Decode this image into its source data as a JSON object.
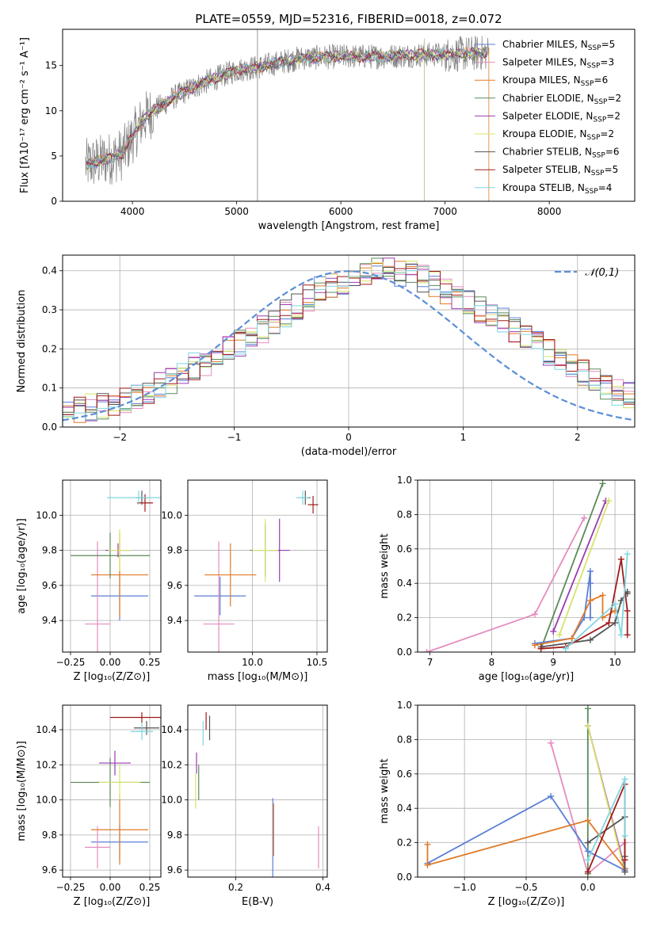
{
  "figure_title": "PLATE=0559, MJD=52316, FIBERID=0018, z=0.072",
  "chart_data": [
    {
      "id": "spectrum",
      "type": "line",
      "xlabel": "wavelength [Angstrom, rest frame]",
      "ylabel": "Flux [fλ10⁻¹⁷ erg cm⁻² s⁻¹ A⁻¹]",
      "xlim": [
        3330,
        8820
      ],
      "ylim": [
        0,
        19
      ],
      "xticks": [
        4000,
        5000,
        6000,
        7000,
        8000
      ],
      "yticks": [
        0,
        5,
        10,
        15
      ],
      "grid": false,
      "legend_position": "top-right",
      "series": [
        {
          "name": "Chabrier MILES, N_SSP=5",
          "label_main": "Chabrier MILES, N",
          "label_sub": "SSP",
          "label_tail": "=5",
          "color": "#5b7fd6"
        },
        {
          "name": "Salpeter MILES, N_SSP=3",
          "label_main": "Salpeter MILES, N",
          "label_sub": "SSP",
          "label_tail": "=3",
          "color": "#e58cbf"
        },
        {
          "name": "Kroupa MILES, N_SSP=6",
          "label_main": "Kroupa MILES, N",
          "label_sub": "SSP",
          "label_tail": "=6",
          "color": "#e07b28"
        },
        {
          "name": "Chabrier ELODIE, N_SSP=2",
          "label_main": "Chabrier ELODIE, N",
          "label_sub": "SSP",
          "label_tail": "=2",
          "color": "#5a8a5a"
        },
        {
          "name": "Salpeter ELODIE, N_SSP=2",
          "label_main": "Salpeter ELODIE, N",
          "label_sub": "SSP",
          "label_tail": "=2",
          "color": "#9b3bb0"
        },
        {
          "name": "Kroupa ELODIE, N_SSP=2",
          "label_main": "Kroupa ELODIE, N",
          "label_sub": "SSP",
          "label_tail": "=2",
          "color": "#d7e36a"
        },
        {
          "name": "Chabrier STELIB, N_SSP=6",
          "label_main": "Chabrier STELIB, N",
          "label_sub": "SSP",
          "label_tail": "=6",
          "color": "#555555"
        },
        {
          "name": "Salpeter STELIB, N_SSP=5",
          "label_main": "Salpeter STELIB, N",
          "label_sub": "SSP",
          "label_tail": "=5",
          "color": "#a01b1b"
        },
        {
          "name": "Kroupa STELIB, N_SSP=4",
          "label_main": "Kroupa STELIB, N",
          "label_sub": "SSP",
          "label_tail": "=4",
          "color": "#7fd6e0"
        }
      ],
      "data_color": "#808080",
      "continuum": {
        "x": [
          3550,
          3700,
          3800,
          3900,
          4000,
          4100,
          4200,
          4400,
          4600,
          4800,
          5000,
          5200,
          5400,
          5600,
          5800,
          6000,
          6200,
          6400,
          6600,
          6800,
          7000,
          7200,
          7400
        ],
        "y": [
          4.0,
          4.5,
          4.8,
          5.2,
          7.0,
          9.0,
          10.0,
          11.5,
          12.7,
          13.6,
          14.5,
          14.8,
          15.3,
          15.8,
          15.9,
          16.0,
          16.0,
          16.0,
          16.1,
          16.2,
          16.2,
          16.3,
          16.4
        ]
      }
    },
    {
      "id": "residuals",
      "type": "histogram",
      "xlabel": "(data-model)/error",
      "ylabel": "Normed distribution",
      "xlim": [
        -2.5,
        2.5
      ],
      "ylim": [
        0,
        0.44
      ],
      "xticks": [
        -2,
        -1,
        0,
        1,
        2
      ],
      "yticks": [
        0.0,
        0.1,
        0.2,
        0.3,
        0.4
      ],
      "grid": true,
      "legend_position": "top-right",
      "reference_curve": {
        "label": "𝒩(0,1)",
        "color": "#5b8fd6",
        "mean": 0,
        "sigma": 1
      },
      "bin_width": 0.1,
      "base_counts": [
        0.035,
        0.045,
        0.05,
        0.055,
        0.06,
        0.07,
        0.08,
        0.095,
        0.11,
        0.12,
        0.14,
        0.155,
        0.165,
        0.18,
        0.2,
        0.215,
        0.23,
        0.25,
        0.27,
        0.29,
        0.31,
        0.33,
        0.35,
        0.36,
        0.375,
        0.385,
        0.395,
        0.4,
        0.4,
        0.395,
        0.39,
        0.38,
        0.365,
        0.35,
        0.335,
        0.32,
        0.3,
        0.285,
        0.27,
        0.25,
        0.23,
        0.21,
        0.19,
        0.17,
        0.155,
        0.14,
        0.12,
        0.105,
        0.09,
        0.08
      ]
    },
    {
      "id": "age-vs-Z",
      "type": "errorbar",
      "xlabel": "Z [log₁₀(Z/Z⊙)]",
      "ylabel": "age  [log₁₀(age/yr)]",
      "xlim": [
        -0.3,
        0.32
      ],
      "ylim": [
        9.22,
        10.2
      ],
      "xticks": [
        -0.25,
        0.0,
        0.25
      ],
      "xticklabels": [
        "−0.25",
        "0.00",
        "0.25"
      ],
      "yticks": [
        9.4,
        9.6,
        9.8,
        10.0
      ],
      "grid": true,
      "points": [
        {
          "s": 0,
          "x": 0.06,
          "y": 9.54,
          "xerr": 0.18,
          "yerr": 0.14
        },
        {
          "s": 1,
          "x": -0.08,
          "y": 9.38,
          "xerr": 0.08,
          "yerr": 0.47
        },
        {
          "s": 2,
          "x": 0.06,
          "y": 9.66,
          "xerr": 0.18,
          "yerr": 0.24
        },
        {
          "s": 3,
          "x": 0.0,
          "y": 9.77,
          "xerr": 0.25,
          "yerr": 0.13
        },
        {
          "s": 4,
          "x": 0.05,
          "y": 9.8,
          "xerr": 0.08,
          "yerr": 0.04
        },
        {
          "s": 5,
          "x": 0.06,
          "y": 9.8,
          "xerr": 0.07,
          "yerr": 0.12
        },
        {
          "s": 6,
          "x": 0.2,
          "y": 10.1,
          "xerr": 0.04,
          "yerr": 0.04
        },
        {
          "s": 7,
          "x": 0.22,
          "y": 10.07,
          "xerr": 0.05,
          "yerr": 0.05
        },
        {
          "s": 8,
          "x": 0.18,
          "y": 10.1,
          "xerr": 0.2,
          "yerr": 0.04
        }
      ]
    },
    {
      "id": "age-vs-mass",
      "type": "errorbar",
      "xlabel": "mass [log₁₀(M/M⊙)]",
      "ylabel": "",
      "xlim": [
        9.5,
        10.58
      ],
      "ylim": [
        9.22,
        10.2
      ],
      "xticks": [
        10.0,
        10.5
      ],
      "xticklabels": [
        "10.0",
        "10.5"
      ],
      "yticks": [
        9.4,
        9.6,
        9.8,
        10.0
      ],
      "grid": true,
      "points": [
        {
          "s": 0,
          "x": 9.75,
          "y": 9.54,
          "xerr": 0.2,
          "yerr": 0.11
        },
        {
          "s": 1,
          "x": 9.74,
          "y": 9.38,
          "xerr": 0.12,
          "yerr": 0.47
        },
        {
          "s": 2,
          "x": 9.83,
          "y": 9.66,
          "xerr": 0.2,
          "yerr": 0.18
        },
        {
          "s": 3,
          "x": 10.1,
          "y": 9.8,
          "xerr": 0.12,
          "yerr": 0.15
        },
        {
          "s": 4,
          "x": 10.21,
          "y": 9.8,
          "xerr": 0.08,
          "yerr": 0.18
        },
        {
          "s": 5,
          "x": 10.1,
          "y": 9.8,
          "xerr": 0.1,
          "yerr": 0.18
        },
        {
          "s": 6,
          "x": 10.41,
          "y": 10.1,
          "xerr": 0.04,
          "yerr": 0.04
        },
        {
          "s": 7,
          "x": 10.47,
          "y": 10.06,
          "xerr": 0.04,
          "yerr": 0.05
        },
        {
          "s": 8,
          "x": 10.39,
          "y": 10.1,
          "xerr": 0.05,
          "yerr": 0.04
        }
      ]
    },
    {
      "id": "weight-vs-age",
      "type": "line",
      "xlabel": "age  [log₁₀(age/yr)]",
      "ylabel": "mass weight",
      "xlim": [
        6.8,
        10.32
      ],
      "ylim": [
        0,
        1
      ],
      "xticks": [
        7,
        8,
        9,
        10
      ],
      "xticklabels": [
        "7",
        "8",
        "9",
        "10"
      ],
      "yticks": [
        0.0,
        0.2,
        0.4,
        0.6,
        0.8,
        1.0
      ],
      "grid": true,
      "series": [
        {
          "s": 1,
          "x": [
            6.95,
            8.7,
            9.5
          ],
          "y": [
            0.0,
            0.22,
            0.78
          ]
        },
        {
          "s": 3,
          "x": [
            8.8,
            9.8
          ],
          "y": [
            0.02,
            0.98
          ]
        },
        {
          "s": 4,
          "x": [
            9.0,
            9.85
          ],
          "y": [
            0.12,
            0.88
          ]
        },
        {
          "s": 5,
          "x": [
            9.1,
            9.9
          ],
          "y": [
            0.1,
            0.88
          ]
        },
        {
          "s": 0,
          "x": [
            8.7,
            9.3,
            9.5,
            9.6,
            9.6,
            9.6
          ],
          "y": [
            0.05,
            0.08,
            0.2,
            0.47,
            0.4,
            0.2
          ]
        },
        {
          "s": 2,
          "x": [
            8.7,
            9.3,
            9.6,
            9.8,
            9.8,
            10.0
          ],
          "y": [
            0.04,
            0.08,
            0.3,
            0.33,
            0.2,
            0.24
          ]
        },
        {
          "s": 6,
          "x": [
            8.8,
            9.6,
            10.0,
            10.1,
            10.2,
            10.2
          ],
          "y": [
            0.03,
            0.07,
            0.17,
            0.3,
            0.35,
            0.34
          ]
        },
        {
          "s": 7,
          "x": [
            8.8,
            9.2,
            9.9,
            10.1,
            10.2,
            10.2
          ],
          "y": [
            0.02,
            0.03,
            0.17,
            0.54,
            0.24,
            0.1
          ]
        },
        {
          "s": 8,
          "x": [
            9.2,
            10.0,
            10.1,
            10.2
          ],
          "y": [
            0.02,
            0.28,
            0.1,
            0.57
          ]
        }
      ]
    },
    {
      "id": "mass-vs-Z",
      "type": "errorbar",
      "xlabel": "Z [log₁₀(Z/Z⊙)]",
      "ylabel": "mass [log₁₀(M/M⊙)]",
      "xlim": [
        -0.3,
        0.32
      ],
      "ylim": [
        9.56,
        10.54
      ],
      "xticks": [
        -0.25,
        0.0,
        0.25
      ],
      "xticklabels": [
        "−0.25",
        "0.00",
        "0.25"
      ],
      "yticks": [
        9.6,
        9.8,
        10.0,
        10.2,
        10.4
      ],
      "grid": true,
      "points": [
        {
          "s": 0,
          "x": 0.06,
          "y": 9.76,
          "xerr": 0.18,
          "yerr": 0.1
        },
        {
          "s": 1,
          "x": -0.08,
          "y": 9.73,
          "xerr": 0.08,
          "yerr": 0.12
        },
        {
          "s": 2,
          "x": 0.06,
          "y": 9.83,
          "xerr": 0.18,
          "yerr": 0.2
        },
        {
          "s": 3,
          "x": 0.0,
          "y": 10.1,
          "xerr": 0.25,
          "yerr": 0.14
        },
        {
          "s": 4,
          "x": 0.03,
          "y": 10.21,
          "xerr": 0.1,
          "yerr": 0.07
        },
        {
          "s": 5,
          "x": 0.06,
          "y": 10.1,
          "xerr": 0.13,
          "yerr": 0.1
        },
        {
          "s": 6,
          "x": 0.23,
          "y": 10.41,
          "xerr": 0.08,
          "yerr": 0.04
        },
        {
          "s": 7,
          "x": 0.2,
          "y": 10.47,
          "xerr": 0.2,
          "yerr": 0.03
        },
        {
          "s": 8,
          "x": 0.2,
          "y": 10.39,
          "xerr": 0.07,
          "yerr": 0.05
        }
      ]
    },
    {
      "id": "mass-vs-ebv",
      "type": "errorbar",
      "xlabel": "E(B-V)",
      "ylabel": "",
      "xlim": [
        0.09,
        0.41
      ],
      "ylim": [
        9.56,
        10.54
      ],
      "xticks": [
        0.2,
        0.4
      ],
      "xticklabels": [
        "0.2",
        "0.4"
      ],
      "yticks": [
        9.6,
        9.8,
        10.0,
        10.2,
        10.4
      ],
      "grid": true,
      "points": [
        {
          "s": 0,
          "x": 0.285,
          "y": 9.76,
          "xerr": 0,
          "yerr": 0.25
        },
        {
          "s": 1,
          "x": 0.39,
          "y": 9.73,
          "xerr": 0,
          "yerr": 0.12
        },
        {
          "s": 2,
          "x": 0.287,
          "y": 9.83,
          "xerr": 0,
          "yerr": 0.15
        },
        {
          "s": 3,
          "x": 0.115,
          "y": 10.1,
          "xerr": 0,
          "yerr": 0.1
        },
        {
          "s": 4,
          "x": 0.11,
          "y": 10.21,
          "xerr": 0,
          "yerr": 0.06
        },
        {
          "s": 5,
          "x": 0.108,
          "y": 10.05,
          "xerr": 0,
          "yerr": 0.1
        },
        {
          "s": 6,
          "x": 0.14,
          "y": 10.41,
          "xerr": 0,
          "yerr": 0.07
        },
        {
          "s": 7,
          "x": 0.132,
          "y": 10.45,
          "xerr": 0,
          "yerr": 0.05
        },
        {
          "s": 8,
          "x": 0.125,
          "y": 10.38,
          "xerr": 0,
          "yerr": 0.07
        }
      ]
    },
    {
      "id": "weight-vs-Z",
      "type": "line",
      "xlabel": "Z [log₁₀(Z/Z⊙)]",
      "ylabel": "mass weight",
      "xlim": [
        -1.38,
        0.38
      ],
      "ylim": [
        0,
        1
      ],
      "xticks": [
        -1.0,
        -0.5,
        0.0
      ],
      "xticklabels": [
        "−1.0",
        "−0.5",
        "0.0"
      ],
      "yticks": [
        0.0,
        0.2,
        0.4,
        0.6,
        0.8,
        1.0
      ],
      "grid": true,
      "series": [
        {
          "s": 1,
          "x": [
            -0.3,
            0.0,
            0.3,
            0.3
          ],
          "y": [
            0.78,
            0.02,
            0.2,
            0.05
          ]
        },
        {
          "s": 3,
          "x": [
            0.0,
            0.0,
            0.0
          ],
          "y": [
            0.98,
            0.02,
            0.2
          ]
        },
        {
          "s": 4,
          "x": [
            0.0,
            0.3
          ],
          "y": [
            0.88,
            0.05
          ]
        },
        {
          "s": 5,
          "x": [
            0.0,
            0.3
          ],
          "y": [
            0.88,
            0.03
          ]
        },
        {
          "s": 0,
          "x": [
            -1.3,
            -0.3,
            0.0,
            0.3
          ],
          "y": [
            0.08,
            0.47,
            0.15,
            0.04
          ]
        },
        {
          "s": 2,
          "x": [
            -1.3,
            -1.3,
            0.0,
            0.3
          ],
          "y": [
            0.19,
            0.07,
            0.33,
            0.05
          ]
        },
        {
          "s": 6,
          "x": [
            0.0,
            0.3,
            0.3,
            0.3
          ],
          "y": [
            0.2,
            0.35,
            0.12,
            0.03
          ]
        },
        {
          "s": 7,
          "x": [
            0.0,
            0.3,
            0.3
          ],
          "y": [
            0.03,
            0.54,
            0.1
          ]
        },
        {
          "s": 8,
          "x": [
            0.0,
            0.3,
            0.3
          ],
          "y": [
            0.1,
            0.57,
            0.24
          ]
        }
      ]
    }
  ]
}
